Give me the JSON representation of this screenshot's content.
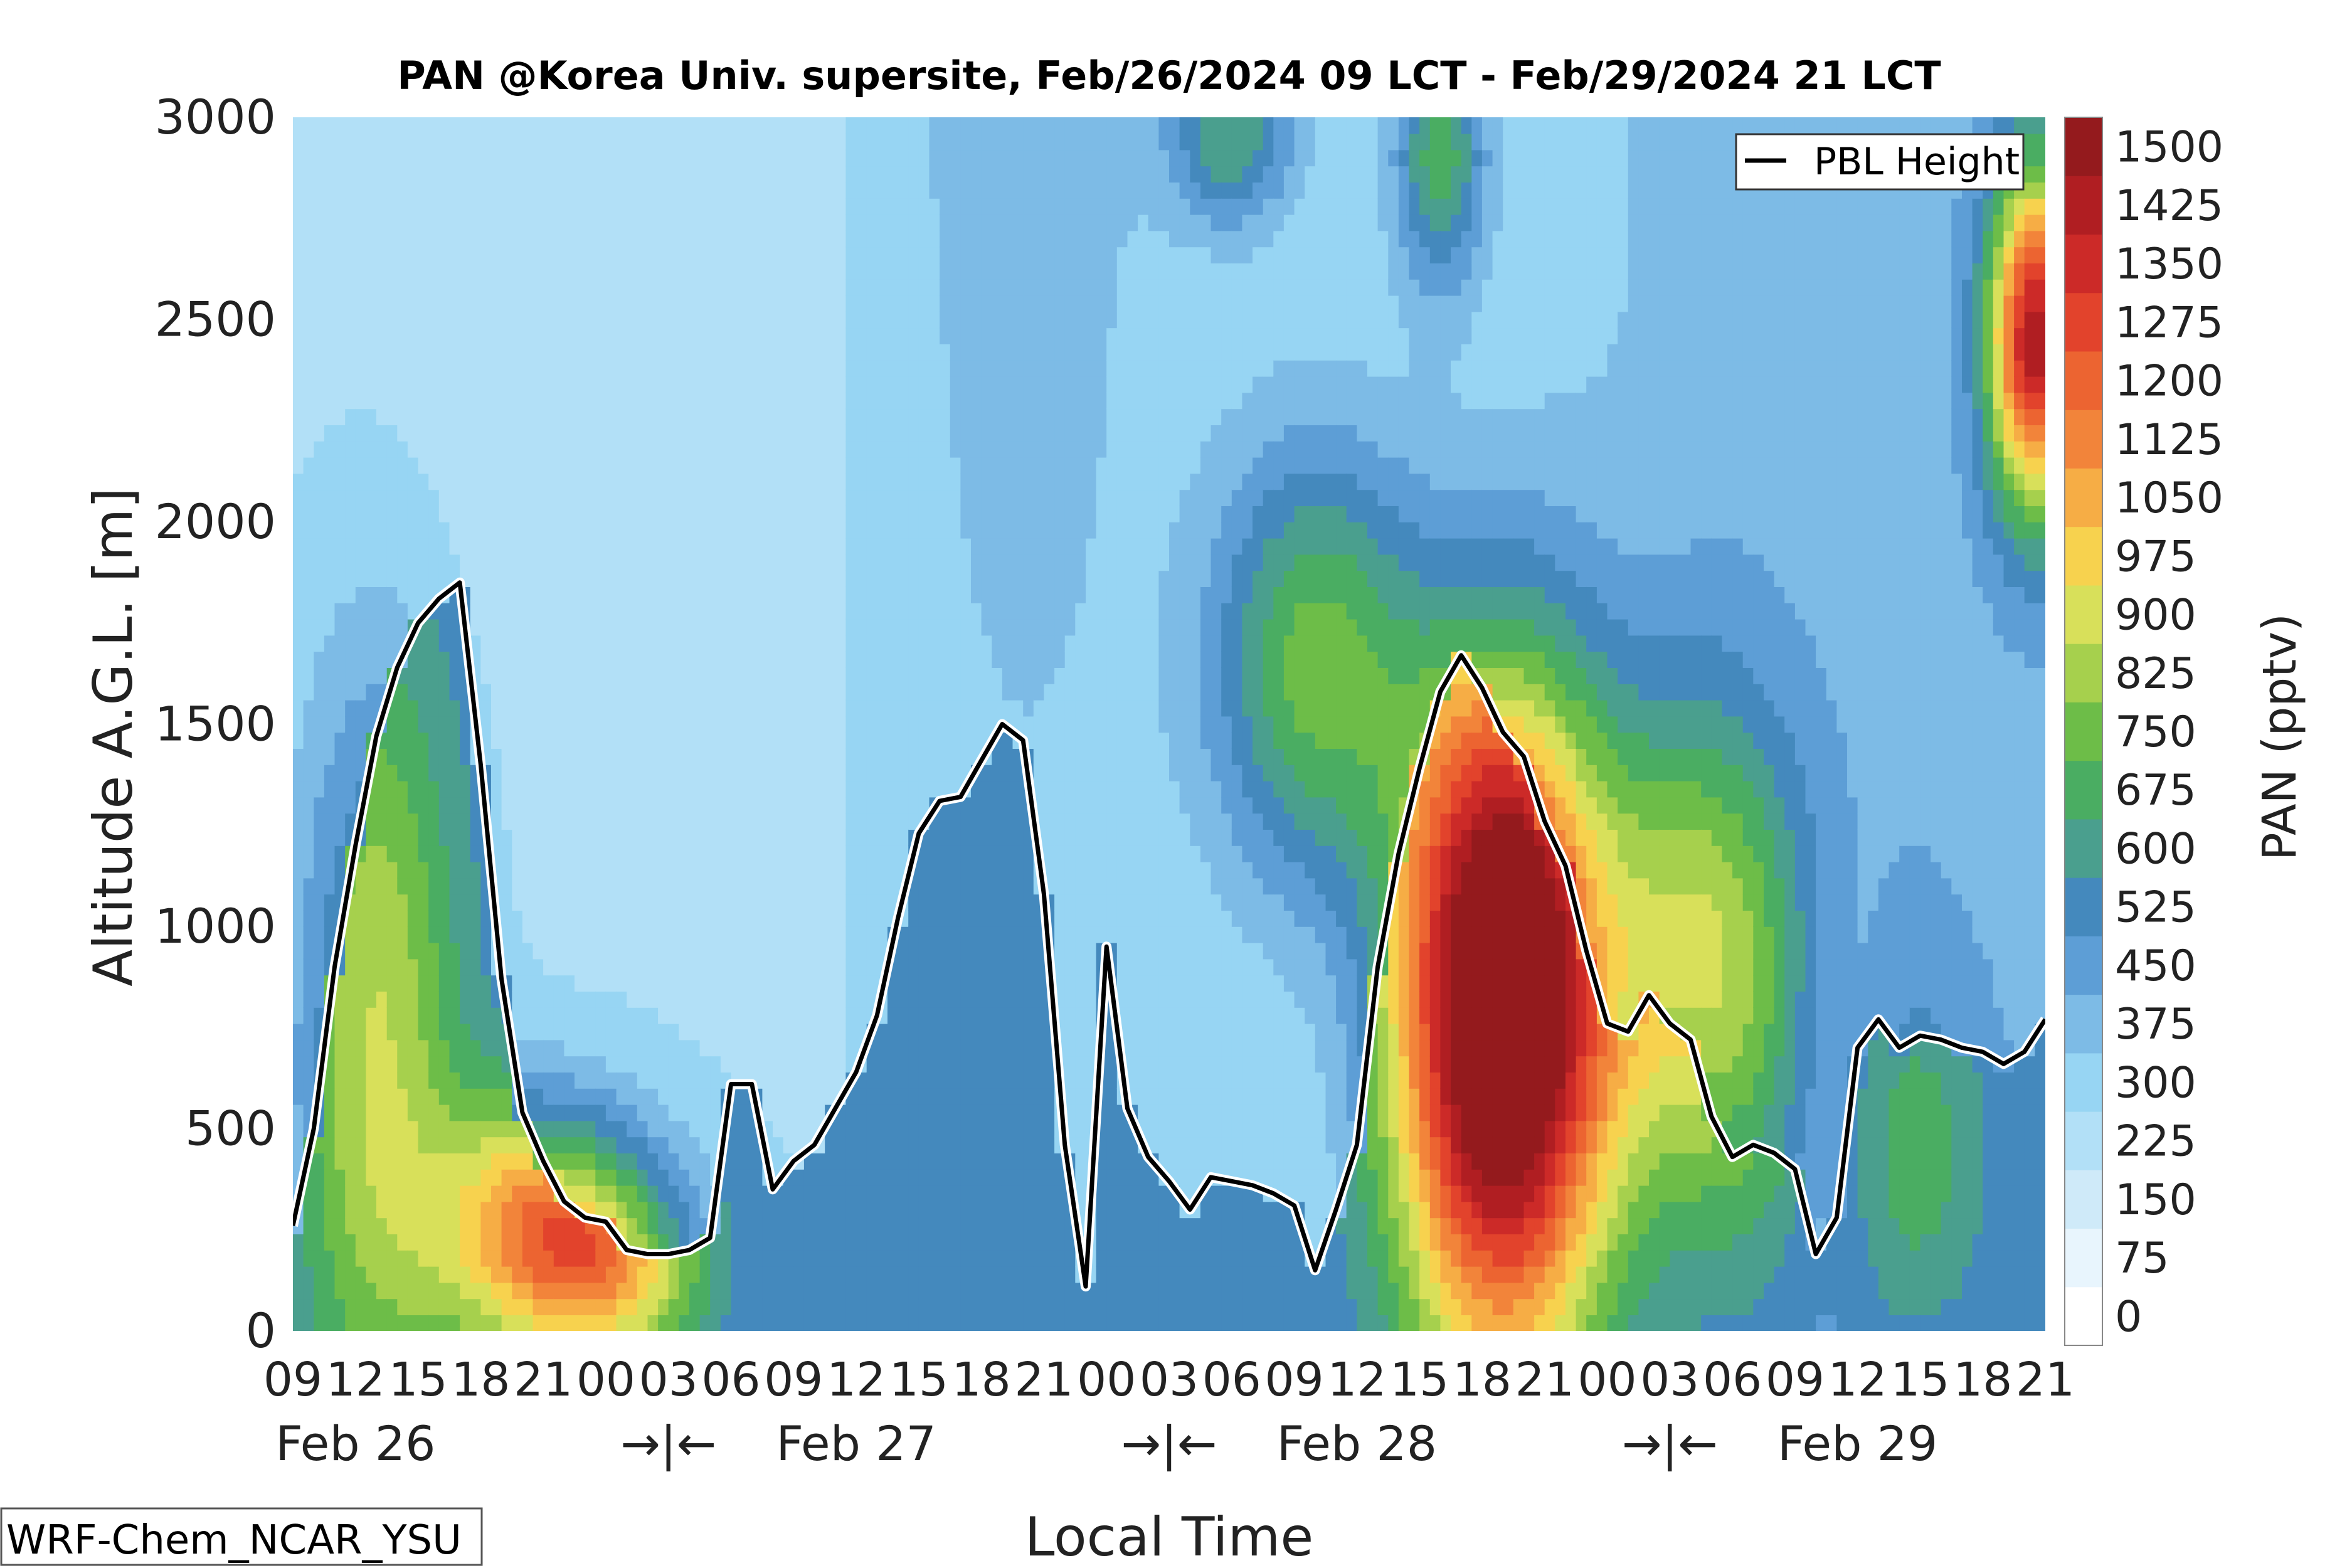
{
  "chart_data": {
    "type": "heatmap",
    "title": "PAN @Korea Univ. supersite, Feb/26/2024 09 LCT - Feb/29/2024 21 LCT",
    "xlabel": "Local Time",
    "ylabel": "Altitude A.G.L. [m]",
    "ylim": [
      0,
      3000
    ],
    "y_ticks": [
      "0",
      "500",
      "1000",
      "1500",
      "2000",
      "2500",
      "3000"
    ],
    "x_ticks": [
      "09",
      "12",
      "15",
      "18",
      "21",
      "00",
      "03",
      "06",
      "09",
      "12",
      "15",
      "18",
      "21",
      "00",
      "03",
      "06",
      "09",
      "12",
      "15",
      "18",
      "21",
      "00",
      "03",
      "06",
      "09",
      "12",
      "15",
      "18",
      "21"
    ],
    "date_labels": [
      {
        "text": "Feb 26",
        "hour_index": 1
      },
      {
        "text": "→|←",
        "hour_index": 6
      },
      {
        "text": "Feb 27",
        "hour_index": 9
      },
      {
        "text": "→|←",
        "hour_index": 14
      },
      {
        "text": "Feb 28",
        "hour_index": 17
      },
      {
        "text": "→|←",
        "hour_index": 22
      },
      {
        "text": "Feb 29",
        "hour_index": 25
      }
    ],
    "colorbar": {
      "label": "PAN (pptv)",
      "levels": [
        0,
        75,
        150,
        225,
        300,
        375,
        450,
        525,
        600,
        675,
        750,
        825,
        900,
        975,
        1050,
        1125,
        1200,
        1275,
        1350,
        1425,
        1500
      ],
      "colors": [
        "#ffffff",
        "#e8f5fd",
        "#cfeaf9",
        "#b2e0f7",
        "#97d5f3",
        "#7dbbe6",
        "#5d9ed6",
        "#4489bd",
        "#4a9f8e",
        "#4aad62",
        "#6dbd48",
        "#a6d04d",
        "#d8e05a",
        "#f7d24e",
        "#f6ad45",
        "#f2843a",
        "#ec6431",
        "#e2432c",
        "#cc2a28",
        "#b01e22",
        "#941a1d"
      ]
    },
    "series": [
      {
        "name": "PBL Height",
        "x_hours": [
          0,
          1,
          2,
          3,
          4,
          5,
          6,
          7,
          8,
          9,
          10,
          11,
          12,
          13,
          14,
          15,
          16,
          17,
          18,
          19,
          20,
          21,
          22,
          23,
          24,
          25,
          26,
          27,
          28,
          29,
          30,
          31,
          32,
          33,
          34,
          35,
          36,
          37,
          38,
          39,
          40,
          41,
          42,
          43,
          44,
          45,
          46,
          47,
          48,
          49,
          50,
          51,
          52,
          53,
          54,
          55,
          56,
          57,
          58,
          59,
          60,
          61,
          62,
          63,
          64,
          65,
          66,
          67,
          68,
          69,
          70,
          71,
          72,
          73,
          74,
          75,
          76,
          77,
          78,
          79,
          80,
          81,
          82,
          83,
          84
        ],
        "values": [
          260,
          500,
          900,
          1200,
          1470,
          1640,
          1750,
          1810,
          1850,
          1400,
          870,
          540,
          420,
          320,
          280,
          270,
          200,
          190,
          190,
          200,
          230,
          610,
          610,
          350,
          420,
          460,
          550,
          640,
          780,
          1020,
          1230,
          1310,
          1320,
          1410,
          1500,
          1460,
          1080,
          460,
          110,
          950,
          550,
          430,
          370,
          300,
          380,
          370,
          360,
          340,
          310,
          150,
          300,
          460,
          900,
          1180,
          1390,
          1580,
          1670,
          1590,
          1480,
          1420,
          1260,
          1150,
          940,
          760,
          740,
          830,
          760,
          720,
          530,
          430,
          460,
          440,
          400,
          190,
          280,
          700,
          770,
          700,
          730,
          720,
          700,
          690,
          660,
          690,
          770
        ]
      }
    ],
    "legend": {
      "entry": "PBL Height",
      "position": "top-right"
    },
    "annotation": "WRF-Chem_NCAR_YSU"
  }
}
